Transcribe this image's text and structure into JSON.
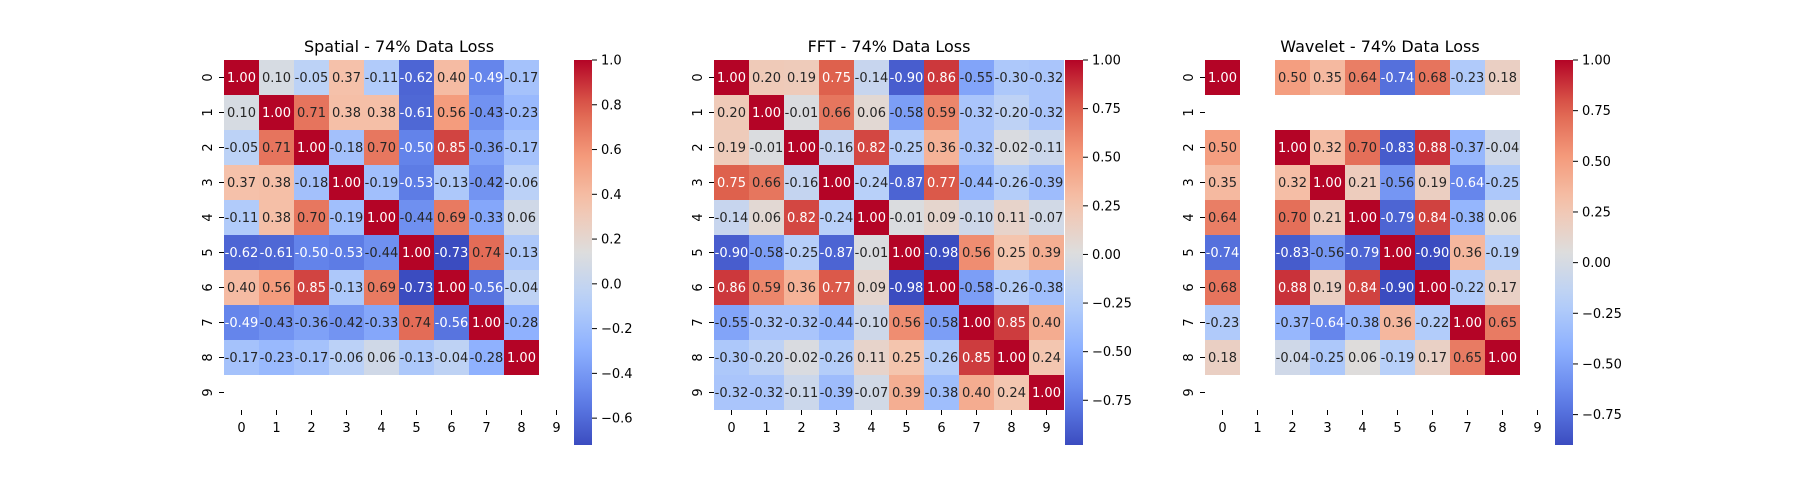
{
  "chart_data": [
    {
      "type": "heatmap",
      "title": "Spatial - 74% Data Loss",
      "x_labels": [
        "0",
        "1",
        "2",
        "3",
        "4",
        "5",
        "6",
        "7",
        "8",
        "9"
      ],
      "y_labels": [
        "0",
        "1",
        "2",
        "3",
        "4",
        "5",
        "6",
        "7",
        "8",
        "9"
      ],
      "colorbar": {
        "min": -0.72,
        "max": 1.0,
        "ticks": [
          -0.6,
          -0.4,
          -0.2,
          0.0,
          0.2,
          0.4,
          0.6,
          0.8,
          1.0
        ],
        "tick_labels": [
          "−0.6",
          "−0.4",
          "−0.2",
          "0.0",
          "0.2",
          "0.4",
          "0.6",
          "0.8",
          "1.0"
        ]
      },
      "values": [
        [
          1.0,
          0.1,
          -0.05,
          0.37,
          -0.11,
          -0.62,
          0.4,
          -0.49,
          -0.17,
          null
        ],
        [
          0.1,
          1.0,
          0.71,
          0.38,
          0.38,
          -0.61,
          0.56,
          -0.43,
          -0.23,
          null
        ],
        [
          -0.05,
          0.71,
          1.0,
          -0.18,
          0.7,
          -0.5,
          0.85,
          -0.36,
          -0.17,
          null
        ],
        [
          0.37,
          0.38,
          -0.18,
          1.0,
          -0.19,
          -0.53,
          -0.13,
          -0.42,
          -0.06,
          null
        ],
        [
          -0.11,
          0.38,
          0.7,
          -0.19,
          1.0,
          -0.44,
          0.69,
          -0.33,
          0.06,
          null
        ],
        [
          -0.62,
          -0.61,
          -0.5,
          -0.53,
          -0.44,
          1.0,
          -0.73,
          0.74,
          -0.13,
          null
        ],
        [
          0.4,
          0.56,
          0.85,
          -0.13,
          0.69,
          -0.73,
          1.0,
          -0.56,
          -0.04,
          null
        ],
        [
          -0.49,
          -0.43,
          -0.36,
          -0.42,
          -0.33,
          0.74,
          -0.56,
          1.0,
          -0.28,
          null
        ],
        [
          -0.17,
          -0.23,
          -0.17,
          -0.06,
          0.06,
          -0.13,
          -0.04,
          -0.28,
          1.0,
          null
        ],
        [
          null,
          null,
          null,
          null,
          null,
          null,
          null,
          null,
          null,
          null
        ]
      ]
    },
    {
      "type": "heatmap",
      "title": "FFT - 74% Data Loss",
      "x_labels": [
        "0",
        "1",
        "2",
        "3",
        "4",
        "5",
        "6",
        "7",
        "8",
        "9"
      ],
      "y_labels": [
        "0",
        "1",
        "2",
        "3",
        "4",
        "5",
        "6",
        "7",
        "8",
        "9"
      ],
      "colorbar": {
        "min": -0.98,
        "max": 1.0,
        "ticks": [
          -0.75,
          -0.5,
          -0.25,
          0.0,
          0.25,
          0.5,
          0.75,
          1.0
        ],
        "tick_labels": [
          "−0.75",
          "−0.50",
          "−0.25",
          "0.00",
          "0.25",
          "0.50",
          "0.75",
          "1.00"
        ]
      },
      "values": [
        [
          1.0,
          0.2,
          0.19,
          0.75,
          -0.14,
          -0.9,
          0.86,
          -0.55,
          -0.3,
          -0.32
        ],
        [
          0.2,
          1.0,
          -0.01,
          0.66,
          0.06,
          -0.58,
          0.59,
          -0.32,
          -0.2,
          -0.32
        ],
        [
          0.19,
          -0.01,
          1.0,
          -0.16,
          0.82,
          -0.25,
          0.36,
          -0.32,
          -0.02,
          -0.11
        ],
        [
          0.75,
          0.66,
          -0.16,
          1.0,
          -0.24,
          -0.87,
          0.77,
          -0.44,
          -0.26,
          -0.39
        ],
        [
          -0.14,
          0.06,
          0.82,
          -0.24,
          1.0,
          -0.01,
          0.09,
          -0.1,
          0.11,
          -0.07
        ],
        [
          -0.9,
          -0.58,
          -0.25,
          -0.87,
          -0.01,
          1.0,
          -0.98,
          0.56,
          0.25,
          0.39
        ],
        [
          0.86,
          0.59,
          0.36,
          0.77,
          0.09,
          -0.98,
          1.0,
          -0.58,
          -0.26,
          -0.38
        ],
        [
          -0.55,
          -0.32,
          -0.32,
          -0.44,
          -0.1,
          0.56,
          -0.58,
          1.0,
          0.85,
          0.4
        ],
        [
          -0.3,
          -0.2,
          -0.02,
          -0.26,
          0.11,
          0.25,
          -0.26,
          0.85,
          1.0,
          0.24
        ],
        [
          -0.32,
          -0.32,
          -0.11,
          -0.39,
          -0.07,
          0.39,
          -0.38,
          0.4,
          0.24,
          1.0
        ]
      ]
    },
    {
      "type": "heatmap",
      "title": "Wavelet - 74% Data Loss",
      "x_labels": [
        "0",
        "1",
        "2",
        "3",
        "4",
        "5",
        "6",
        "7",
        "8",
        "9"
      ],
      "y_labels": [
        "0",
        "1",
        "2",
        "3",
        "4",
        "5",
        "6",
        "7",
        "8",
        "9"
      ],
      "colorbar": {
        "min": -0.9,
        "max": 1.0,
        "ticks": [
          -0.75,
          -0.5,
          -0.25,
          0.0,
          0.25,
          0.5,
          0.75,
          1.0
        ],
        "tick_labels": [
          "−0.75",
          "−0.50",
          "−0.25",
          "0.00",
          "0.25",
          "0.50",
          "0.75",
          "1.00"
        ]
      },
      "values": [
        [
          1.0,
          null,
          0.5,
          0.35,
          0.64,
          -0.74,
          0.68,
          -0.23,
          0.18,
          null
        ],
        [
          null,
          null,
          null,
          null,
          null,
          null,
          null,
          null,
          null,
          null
        ],
        [
          0.5,
          null,
          1.0,
          0.32,
          0.7,
          -0.83,
          0.88,
          -0.37,
          -0.04,
          null
        ],
        [
          0.35,
          null,
          0.32,
          1.0,
          0.21,
          -0.56,
          0.19,
          -0.64,
          -0.25,
          null
        ],
        [
          0.64,
          null,
          0.7,
          0.21,
          1.0,
          -0.79,
          0.84,
          -0.38,
          0.06,
          null
        ],
        [
          -0.74,
          null,
          -0.83,
          -0.56,
          -0.79,
          1.0,
          -0.9,
          0.36,
          -0.19,
          null
        ],
        [
          0.68,
          null,
          0.88,
          0.19,
          0.84,
          -0.9,
          1.0,
          -0.22,
          0.17,
          null
        ],
        [
          -0.23,
          null,
          -0.37,
          -0.64,
          -0.38,
          0.36,
          -0.22,
          1.0,
          0.65,
          null
        ],
        [
          0.18,
          null,
          -0.04,
          -0.25,
          0.06,
          -0.19,
          0.17,
          0.65,
          1.0,
          null
        ],
        [
          null,
          null,
          null,
          null,
          null,
          null,
          null,
          null,
          null,
          null
        ]
      ]
    }
  ]
}
